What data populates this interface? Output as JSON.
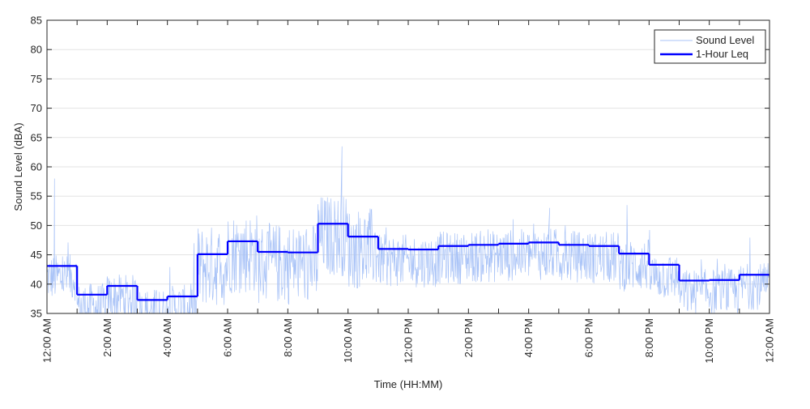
{
  "chart_data": {
    "type": "line",
    "title": "",
    "xlabel": "Time (HH:MM)",
    "ylabel": "Sound Level (dBA)",
    "ylim": [
      35,
      85
    ],
    "xlim_hours": [
      0,
      24
    ],
    "yticks": [
      35,
      40,
      45,
      50,
      55,
      60,
      65,
      70,
      75,
      80,
      85
    ],
    "xtick_labels": [
      "12:00 AM",
      "2:00 AM",
      "4:00 AM",
      "6:00 AM",
      "8:00 AM",
      "10:00 AM",
      "12:00 PM",
      "2:00 PM",
      "4:00 PM",
      "6:00 PM",
      "8:00 PM",
      "10:00 PM",
      "12:00 AM"
    ],
    "grid": "horizontal",
    "legend": {
      "placement": "top-right",
      "entries": [
        "Sound Level",
        "1-Hour Leq"
      ]
    },
    "series": [
      {
        "name": "Sound Level",
        "color": "#a9c3f7",
        "notable_peaks": [
          {
            "hour": 0.25,
            "value": 58
          },
          {
            "hour": 9.8,
            "value": 63.5
          },
          {
            "hour": 16.7,
            "value": 53
          }
        ]
      },
      {
        "name": "1-Hour Leq",
        "color": "#0000ff",
        "hours": [
          0,
          1,
          2,
          3,
          4,
          5,
          6,
          7,
          8,
          9,
          10,
          11,
          12,
          13,
          14,
          15,
          16,
          17,
          18,
          19,
          20,
          21,
          22,
          23
        ],
        "values": [
          43.1,
          38.2,
          39.7,
          37.3,
          37.9,
          45.1,
          47.3,
          45.5,
          45.4,
          50.3,
          48.1,
          46.0,
          45.9,
          46.5,
          46.7,
          46.9,
          47.1,
          46.7,
          46.5,
          45.2,
          43.3,
          40.6,
          40.7,
          41.6
        ]
      }
    ]
  }
}
